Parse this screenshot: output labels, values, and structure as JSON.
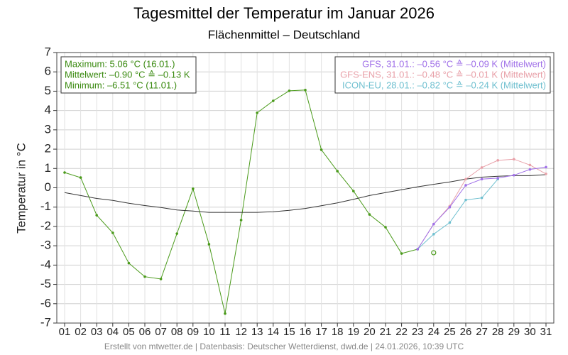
{
  "chart_data": {
    "type": "line",
    "title": "Tagesmittel der Temperatur im Januar 2026",
    "subtitle": "Flächenmittel – Deutschland",
    "ylabel": "Temperatur in °C",
    "footer": "Erstellt von mtwetter.de | Datenbasis: Deutscher Wetterdienst, dwd.de | 24.01.2026, 10:39 UTC",
    "categories": [
      "01",
      "02",
      "03",
      "04",
      "05",
      "06",
      "07",
      "08",
      "09",
      "10",
      "11",
      "12",
      "13",
      "14",
      "15",
      "16",
      "17",
      "18",
      "19",
      "20",
      "21",
      "22",
      "23",
      "24",
      "25",
      "26",
      "27",
      "28",
      "29",
      "30",
      "31"
    ],
    "ylim": [
      -7,
      7
    ],
    "yticks": [
      -7,
      -6,
      -5,
      -4,
      -3,
      -2,
      -1,
      0,
      1,
      2,
      3,
      4,
      5,
      6,
      7
    ],
    "grid": true,
    "stats": [
      "Maximum:   5.06 °C  (16.01.)",
      "Mittelwert: –0.90 °C ≙ –0.13 K",
      "Minimum:   –6.51 °C  (11.01.)"
    ],
    "stats_color": "#3a8a10",
    "series": [
      {
        "color": "#4a9a1a",
        "dots": true,
        "values": [
          0.79,
          0.53,
          -1.42,
          -2.33,
          -3.9,
          -4.6,
          -4.72,
          -2.37,
          -0.05,
          -2.92,
          -6.51,
          -1.67,
          3.88,
          4.5,
          5.02,
          5.06,
          1.97,
          0.86,
          -0.17,
          -1.38,
          -2.04,
          -3.4,
          -3.18,
          null,
          null,
          null,
          null,
          null,
          null,
          null,
          null
        ]
      },
      {
        "color": "#333333",
        "dots": false,
        "values": [
          -0.25,
          -0.4,
          -0.55,
          -0.65,
          -0.8,
          -0.92,
          -1.02,
          -1.15,
          -1.2,
          -1.27,
          -1.27,
          -1.27,
          -1.27,
          -1.24,
          -1.17,
          -1.07,
          -0.93,
          -0.78,
          -0.6,
          -0.4,
          -0.25,
          -0.1,
          0.05,
          0.18,
          0.3,
          0.45,
          0.55,
          0.6,
          0.63,
          0.63,
          0.68
        ]
      },
      {
        "name": "GFS-ENS, 31.01.: –0.48 °C ≙ –0.01 K (Mittelwert)",
        "color": "#e8a0a8",
        "dots": true,
        "values": [
          null,
          null,
          null,
          null,
          null,
          null,
          null,
          null,
          null,
          null,
          null,
          null,
          null,
          null,
          null,
          null,
          null,
          null,
          null,
          null,
          null,
          null,
          -3.18,
          -1.88,
          -0.95,
          0.45,
          1.05,
          1.42,
          1.48,
          1.18,
          0.72
        ]
      },
      {
        "name": "ICON-EU, 28.01.: –0.82 °C ≙ –0.24 K (Mittelwert)",
        "color": "#70c0d0",
        "dots": true,
        "values": [
          null,
          null,
          null,
          null,
          null,
          null,
          null,
          null,
          null,
          null,
          null,
          null,
          null,
          null,
          null,
          null,
          null,
          null,
          null,
          null,
          null,
          null,
          -3.18,
          -2.4,
          -1.8,
          -0.63,
          -0.52,
          0.45,
          null,
          null,
          null
        ]
      },
      {
        "name": "GFS, 31.01.: –0.56 °C ≙ –0.09 K (Mittelwert)",
        "color": "#a070e8",
        "dots": true,
        "values": [
          null,
          null,
          null,
          null,
          null,
          null,
          null,
          null,
          null,
          null,
          null,
          null,
          null,
          null,
          null,
          null,
          null,
          null,
          null,
          null,
          null,
          null,
          -3.18,
          -1.88,
          -1.0,
          0.13,
          0.45,
          0.5,
          0.65,
          0.95,
          1.07
        ]
      },
      {
        "color": "#4a9a1a",
        "dots": "open",
        "values": [
          null,
          null,
          null,
          null,
          null,
          null,
          null,
          null,
          null,
          null,
          null,
          null,
          null,
          null,
          null,
          null,
          null,
          null,
          null,
          null,
          null,
          null,
          null,
          -3.36,
          null,
          null,
          null,
          null,
          null,
          null,
          null
        ]
      }
    ],
    "legend_order": [
      4,
      2,
      3
    ]
  }
}
